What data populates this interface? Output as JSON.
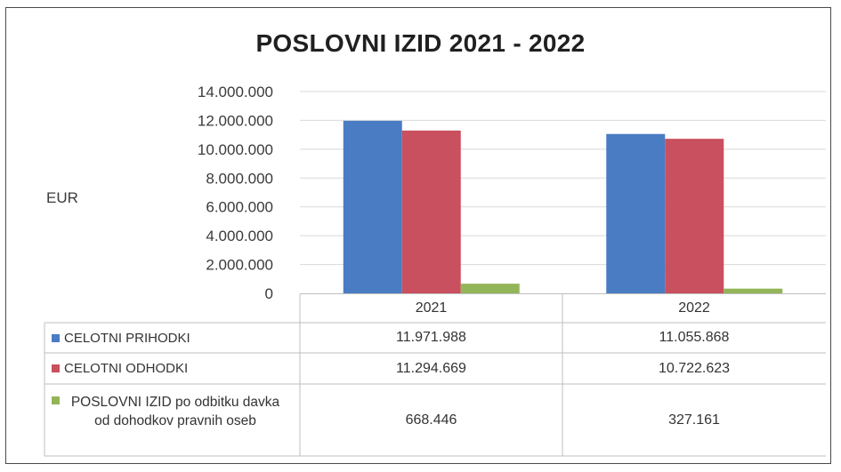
{
  "chart_data": {
    "type": "bar",
    "title": "POSLOVNI IZID 2021 - 2022",
    "ylabel": "EUR",
    "xlabel": "",
    "categories": [
      "2021",
      "2022"
    ],
    "ylim": [
      0,
      14000000
    ],
    "yticks": [
      "14.000.000",
      "12.000.000",
      "10.000.000",
      "8.000.000",
      "6.000.000",
      "4.000.000",
      "2.000.000",
      "0"
    ],
    "ytick_values": [
      14000000,
      12000000,
      10000000,
      8000000,
      6000000,
      4000000,
      2000000,
      0
    ],
    "grid": true,
    "legend": "data-table",
    "series": [
      {
        "name": "CELOTNI PRIHODKI",
        "color": "#4a7cc4",
        "values": [
          11971988,
          11055868
        ],
        "labels": [
          "11.971.988",
          "11.055.868"
        ]
      },
      {
        "name": "CELOTNI ODHODKI",
        "color": "#c9505e",
        "values": [
          11294669,
          10722623
        ],
        "labels": [
          "11.294.669",
          "10.722.623"
        ]
      },
      {
        "name": "POSLOVNI IZID po odbitku davka od dohodkov pravnih oseb",
        "color": "#93b55a",
        "values": [
          668446,
          327161
        ],
        "labels": [
          "668.446",
          "327.161"
        ]
      }
    ]
  }
}
